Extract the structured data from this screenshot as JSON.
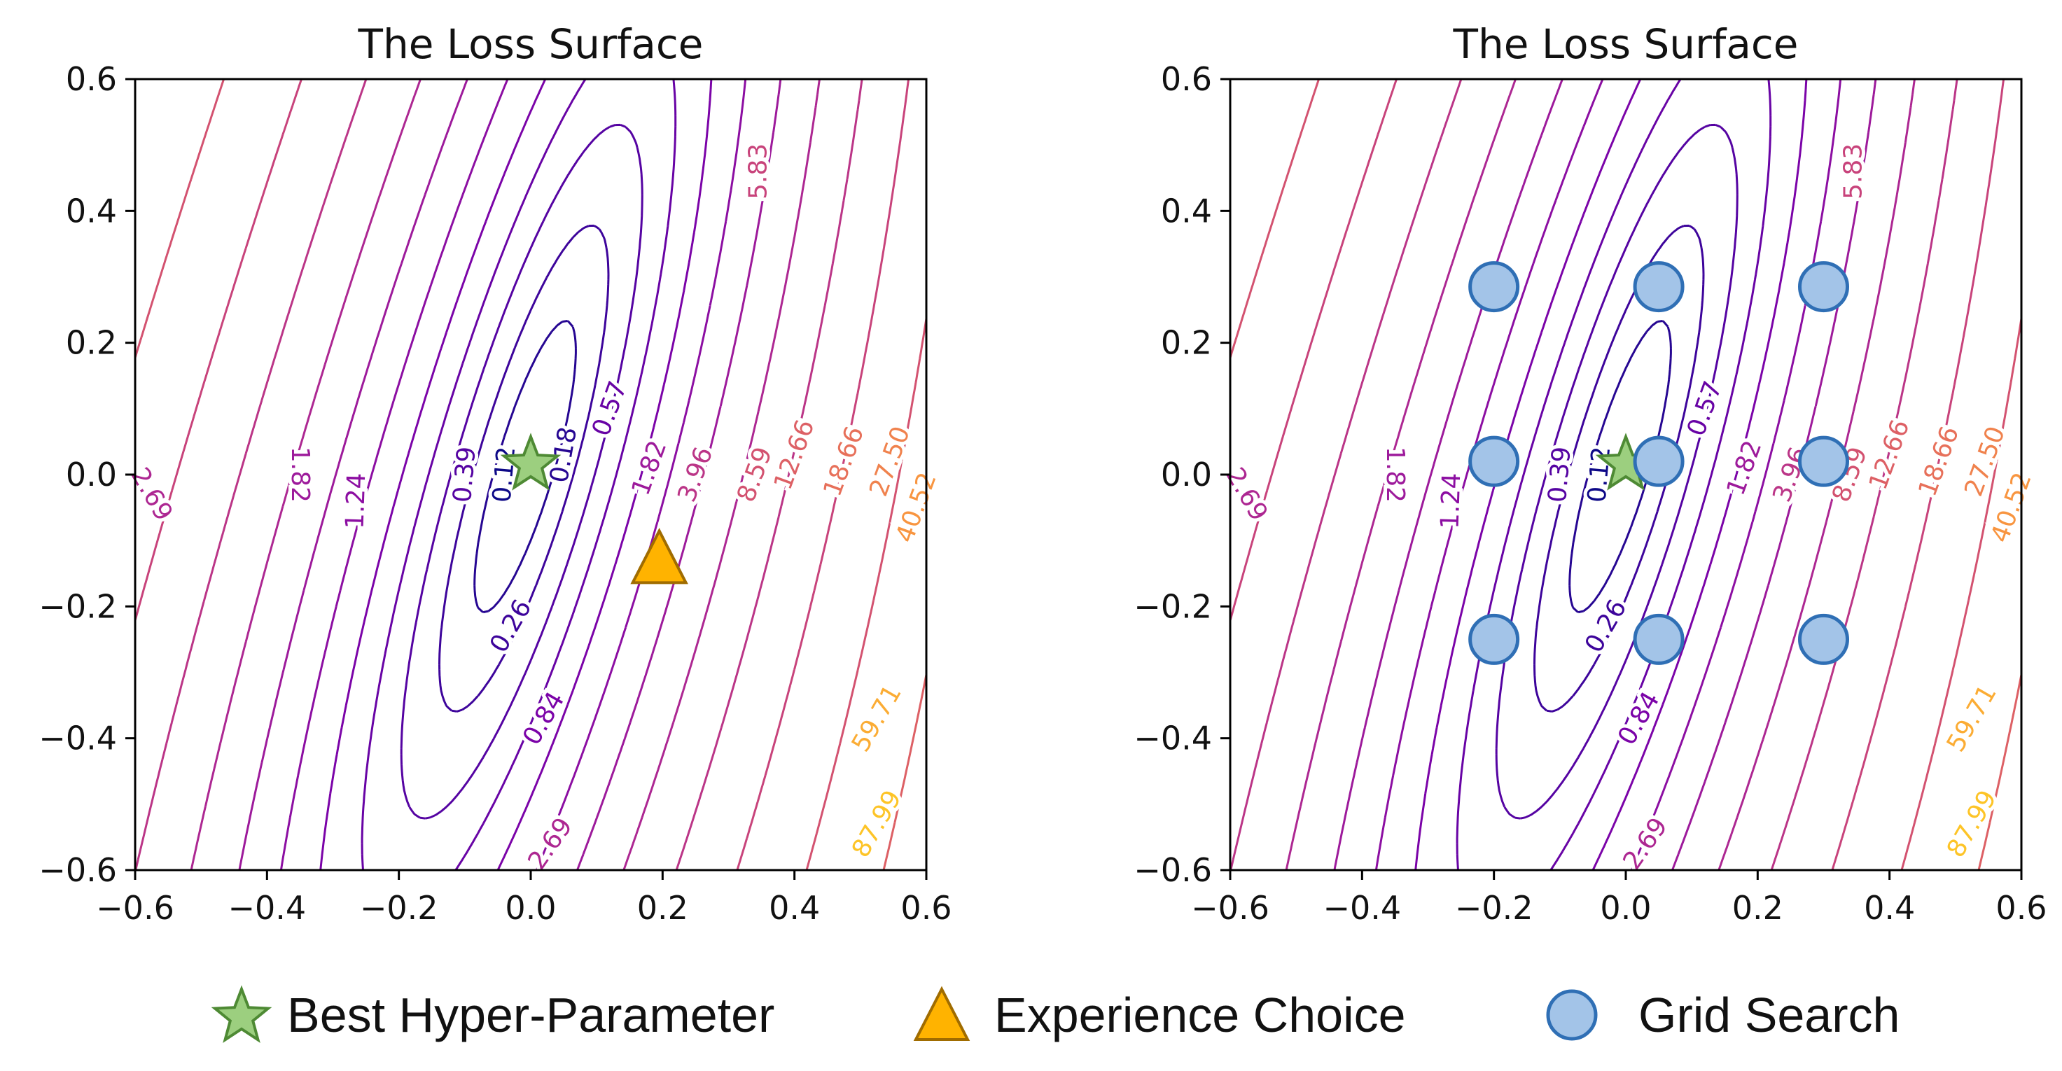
{
  "chart_data": [
    {
      "type": "contour",
      "title": "The Loss Surface",
      "xlim": [
        -0.6,
        0.6
      ],
      "ylim": [
        -0.6,
        0.6
      ],
      "xticks": [
        "−0.6",
        "−0.4",
        "−0.2",
        "0.0",
        "0.2",
        "0.4",
        "0.6"
      ],
      "yticks": [
        "−0.6",
        "−0.4",
        "−0.2",
        "0.0",
        "0.2",
        "0.4",
        "0.6"
      ],
      "xtick_values": [
        -0.6,
        -0.4,
        -0.2,
        0.0,
        0.2,
        0.4,
        0.6
      ],
      "ytick_values": [
        -0.6,
        -0.4,
        -0.2,
        0.0,
        0.2,
        0.4,
        0.6
      ],
      "contour_levels": [
        0.12,
        0.18,
        0.26,
        0.39,
        0.57,
        0.84,
        1.24,
        1.82,
        2.69,
        3.96,
        5.83,
        8.59,
        12.66,
        18.66,
        27.5,
        40.52,
        59.71,
        87.99
      ],
      "contour_labels": [
        {
          "text": "2.69",
          "x": -0.575,
          "y": -0.03,
          "level": 2.69,
          "rot": 60
        },
        {
          "text": "1.82",
          "x": -0.35,
          "y": 0.0,
          "level": 1.82,
          "rot": 90
        },
        {
          "text": "1.24",
          "x": -0.265,
          "y": -0.04,
          "level": 1.24,
          "rot": -88
        },
        {
          "text": "0.39",
          "x": -0.1,
          "y": 0.0,
          "level": 0.39,
          "rot": -85
        },
        {
          "text": "0.12",
          "x": -0.04,
          "y": 0.0,
          "level": 0.12,
          "rot": -85
        },
        {
          "text": "0.18",
          "x": 0.05,
          "y": 0.03,
          "level": 0.18,
          "rot": -80
        },
        {
          "text": "0.57",
          "x": 0.12,
          "y": 0.1,
          "level": 0.57,
          "rot": -70
        },
        {
          "text": "0.26",
          "x": -0.03,
          "y": -0.23,
          "level": 0.26,
          "rot": -60
        },
        {
          "text": "0.84",
          "x": 0.02,
          "y": -0.37,
          "level": 0.84,
          "rot": -60
        },
        {
          "text": "2.69",
          "x": 0.03,
          "y": -0.56,
          "level": 2.69,
          "rot": -55
        },
        {
          "text": "1.82",
          "x": 0.18,
          "y": 0.01,
          "level": 1.82,
          "rot": -70
        },
        {
          "text": "3.96",
          "x": 0.25,
          "y": 0.0,
          "level": 3.96,
          "rot": -70
        },
        {
          "text": "5.83",
          "x": 0.345,
          "y": 0.46,
          "level": 5.83,
          "rot": -90
        },
        {
          "text": "8.59",
          "x": 0.34,
          "y": 0.0,
          "level": 8.59,
          "rot": -70
        },
        {
          "text": "12.66",
          "x": 0.4,
          "y": 0.03,
          "level": 12.66,
          "rot": -70
        },
        {
          "text": "18.66",
          "x": 0.475,
          "y": 0.02,
          "level": 18.66,
          "rot": -70
        },
        {
          "text": "27.50",
          "x": 0.545,
          "y": 0.02,
          "level": 27.5,
          "rot": -70
        },
        {
          "text": "40.52",
          "x": 0.585,
          "y": -0.05,
          "level": 40.52,
          "rot": -70
        },
        {
          "text": "59.71",
          "x": 0.525,
          "y": -0.37,
          "level": 59.71,
          "rot": -60
        },
        {
          "text": "87.99",
          "x": 0.525,
          "y": -0.53,
          "level": 87.99,
          "rot": -60
        }
      ],
      "markers": [
        {
          "kind": "star",
          "series": "Best Hyper-Parameter",
          "x": 0.0,
          "y": 0.015
        },
        {
          "kind": "triangle",
          "series": "Experience Choice",
          "x": 0.195,
          "y": -0.13
        }
      ]
    },
    {
      "type": "contour",
      "title": "The Loss Surface",
      "xlim": [
        -0.6,
        0.6
      ],
      "ylim": [
        -0.6,
        0.6
      ],
      "xticks": [
        "−0.6",
        "−0.4",
        "−0.2",
        "0.0",
        "0.2",
        "0.4",
        "0.6"
      ],
      "yticks": [
        "−0.6",
        "−0.4",
        "−0.2",
        "0.0",
        "0.2",
        "0.4",
        "0.6"
      ],
      "xtick_values": [
        -0.6,
        -0.4,
        -0.2,
        0.0,
        0.2,
        0.4,
        0.6
      ],
      "ytick_values": [
        -0.6,
        -0.4,
        -0.2,
        0.0,
        0.2,
        0.4,
        0.6
      ],
      "contour_levels": [
        0.12,
        0.18,
        0.26,
        0.39,
        0.57,
        0.84,
        1.24,
        1.82,
        2.69,
        3.96,
        5.83,
        8.59,
        12.66,
        18.66,
        27.5,
        40.52,
        59.71,
        87.99
      ],
      "contour_labels": [
        {
          "text": "2.69",
          "x": -0.575,
          "y": -0.03,
          "level": 2.69,
          "rot": 60
        },
        {
          "text": "1.82",
          "x": -0.35,
          "y": 0.0,
          "level": 1.82,
          "rot": 90
        },
        {
          "text": "1.24",
          "x": -0.265,
          "y": -0.04,
          "level": 1.24,
          "rot": -88
        },
        {
          "text": "0.39",
          "x": -0.1,
          "y": 0.0,
          "level": 0.39,
          "rot": -85
        },
        {
          "text": "0.12",
          "x": -0.04,
          "y": 0.0,
          "level": 0.12,
          "rot": -85
        },
        {
          "text": "0.57",
          "x": 0.12,
          "y": 0.1,
          "level": 0.57,
          "rot": -70
        },
        {
          "text": "0.26",
          "x": -0.03,
          "y": -0.23,
          "level": 0.26,
          "rot": -60
        },
        {
          "text": "0.84",
          "x": 0.02,
          "y": -0.37,
          "level": 0.84,
          "rot": -60
        },
        {
          "text": "2.69",
          "x": 0.03,
          "y": -0.56,
          "level": 2.69,
          "rot": -55
        },
        {
          "text": "1.82",
          "x": 0.18,
          "y": 0.01,
          "level": 1.82,
          "rot": -70
        },
        {
          "text": "3.96",
          "x": 0.25,
          "y": 0.0,
          "level": 3.96,
          "rot": -70
        },
        {
          "text": "5.83",
          "x": 0.345,
          "y": 0.46,
          "level": 5.83,
          "rot": -90
        },
        {
          "text": "8.59",
          "x": 0.34,
          "y": 0.0,
          "level": 8.59,
          "rot": -70
        },
        {
          "text": "12.66",
          "x": 0.4,
          "y": 0.03,
          "level": 12.66,
          "rot": -70
        },
        {
          "text": "18.66",
          "x": 0.475,
          "y": 0.02,
          "level": 18.66,
          "rot": -70
        },
        {
          "text": "27.50",
          "x": 0.545,
          "y": 0.02,
          "level": 27.5,
          "rot": -70
        },
        {
          "text": "40.52",
          "x": 0.585,
          "y": -0.05,
          "level": 40.52,
          "rot": -70
        },
        {
          "text": "59.71",
          "x": 0.525,
          "y": -0.37,
          "level": 59.71,
          "rot": -60
        },
        {
          "text": "87.99",
          "x": 0.525,
          "y": -0.53,
          "level": 87.99,
          "rot": -60
        }
      ],
      "markers": [
        {
          "kind": "star",
          "series": "Best Hyper-Parameter",
          "x": 0.0,
          "y": 0.015
        },
        {
          "kind": "circle",
          "series": "Grid Search",
          "x": -0.2,
          "y": 0.285
        },
        {
          "kind": "circle",
          "series": "Grid Search",
          "x": 0.05,
          "y": 0.285
        },
        {
          "kind": "circle",
          "series": "Grid Search",
          "x": 0.3,
          "y": 0.285
        },
        {
          "kind": "circle",
          "series": "Grid Search",
          "x": -0.2,
          "y": 0.02
        },
        {
          "kind": "circle",
          "series": "Grid Search",
          "x": 0.05,
          "y": 0.02
        },
        {
          "kind": "circle",
          "series": "Grid Search",
          "x": 0.3,
          "y": 0.02
        },
        {
          "kind": "circle",
          "series": "Grid Search",
          "x": -0.2,
          "y": -0.25
        },
        {
          "kind": "circle",
          "series": "Grid Search",
          "x": 0.05,
          "y": -0.25
        },
        {
          "kind": "circle",
          "series": "Grid Search",
          "x": 0.3,
          "y": -0.25
        }
      ]
    }
  ],
  "legend": {
    "items": [
      {
        "label": "Best Hyper-Parameter",
        "icon": "star-icon"
      },
      {
        "label": "Experience Choice",
        "icon": "triangle-icon"
      },
      {
        "label": "Grid Search",
        "icon": "circle-icon"
      }
    ]
  },
  "colors": {
    "star_fill": "#9ccf7f",
    "star_edge": "#4e8a34",
    "triangle_fill": "#ffb300",
    "triangle_edge": "#a06c00",
    "circle_fill": "#a3c4e8",
    "circle_edge": "#2f6fb5"
  }
}
